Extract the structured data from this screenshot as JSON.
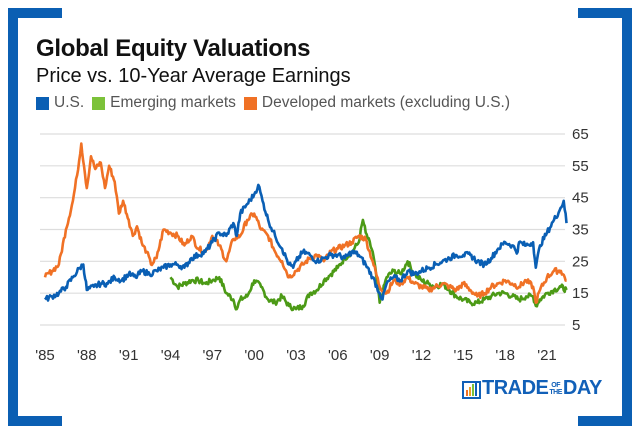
{
  "colors": {
    "frame": "#0b5fb3",
    "us": "#0a5fb4",
    "em": "#4c9a16",
    "dev": "#f07125",
    "grid": "#dddddd"
  },
  "legend": [
    {
      "label": "U.S.",
      "color": "#0a5fb4"
    },
    {
      "label": "Emerging markets",
      "color": "#7cc23a"
    },
    {
      "label": "Developed markets (excluding U.S.)",
      "color": "#f07125"
    }
  ],
  "logo": {
    "text_left": "TRADE",
    "text_of": "OF",
    "text_the": "THE",
    "text_right": "DAY"
  },
  "chart_data": {
    "type": "line",
    "title": "Global Equity Valuations",
    "subtitle": "Price vs. 10-Year Average Earnings",
    "xlabel": "",
    "ylabel": "",
    "xlim": [
      1984.6,
      2022.7
    ],
    "ylim": [
      5,
      65
    ],
    "yticks": [
      65,
      55,
      45,
      35,
      25,
      15,
      5
    ],
    "xticks": [
      {
        "year": 1985,
        "label": "'85"
      },
      {
        "year": 1988,
        "label": "'88"
      },
      {
        "year": 1991,
        "label": "'91"
      },
      {
        "year": 1994,
        "label": "'94"
      },
      {
        "year": 1997,
        "label": "'97"
      },
      {
        "year": 2000,
        "label": "'00"
      },
      {
        "year": 2003,
        "label": "'03"
      },
      {
        "year": 2006,
        "label": "'06"
      },
      {
        "year": 2009,
        "label": "'09"
      },
      {
        "year": 2012,
        "label": "'12"
      },
      {
        "year": 2015,
        "label": "'15"
      },
      {
        "year": 2018,
        "label": "'18"
      },
      {
        "year": 2021,
        "label": "'21"
      }
    ],
    "grid": true,
    "legend_position": "top-left",
    "series": [
      {
        "name": "U.S.",
        "key": "us",
        "x": [
          1985.0,
          1985.5,
          1986.0,
          1986.5,
          1987.0,
          1987.5,
          1987.75,
          1988.0,
          1988.5,
          1989.0,
          1989.5,
          1990.0,
          1990.5,
          1991.0,
          1991.5,
          1992.0,
          1992.5,
          1993.0,
          1993.5,
          1994.0,
          1994.5,
          1995.0,
          1995.5,
          1996.0,
          1996.5,
          1997.0,
          1997.5,
          1998.0,
          1998.5,
          1998.75,
          1999.0,
          1999.5,
          2000.0,
          2000.3,
          2000.6,
          2001.0,
          2001.5,
          2002.0,
          2002.5,
          2002.8,
          2003.0,
          2003.5,
          2004.0,
          2004.5,
          2005.0,
          2005.5,
          2006.0,
          2006.5,
          2007.0,
          2007.5,
          2008.0,
          2008.5,
          2009.0,
          2009.2,
          2009.5,
          2010.0,
          2010.5,
          2011.0,
          2011.5,
          2012.0,
          2012.5,
          2013.0,
          2013.5,
          2014.0,
          2014.5,
          2015.0,
          2015.5,
          2016.0,
          2016.5,
          2017.0,
          2017.5,
          2018.0,
          2018.5,
          2018.9,
          2019.0,
          2019.5,
          2020.0,
          2020.2,
          2020.5,
          2021.0,
          2021.5,
          2021.9,
          2022.2,
          2022.4
        ],
        "values": [
          13,
          14,
          15,
          17,
          20,
          23,
          24,
          16,
          17,
          18,
          18,
          20,
          19,
          21,
          20,
          22,
          21,
          22,
          23,
          24,
          24,
          23,
          26,
          27,
          28,
          31,
          34,
          33,
          37,
          33,
          40,
          43,
          46,
          49,
          44,
          38,
          33,
          29,
          24,
          23,
          25,
          28,
          27,
          25,
          26,
          27,
          27,
          26,
          28,
          27,
          24,
          20,
          15,
          13,
          18,
          20,
          19,
          22,
          21,
          22,
          23,
          24,
          25,
          26,
          27,
          27,
          27,
          25,
          24,
          26,
          29,
          31,
          30,
          28,
          31,
          30,
          31,
          23,
          30,
          34,
          38,
          41,
          44,
          37
        ]
      },
      {
        "name": "Emerging markets",
        "key": "em",
        "x": [
          1994.0,
          1994.5,
          1995.0,
          1995.5,
          1996.0,
          1996.5,
          1997.0,
          1997.5,
          1998.0,
          1998.5,
          1998.75,
          1999.0,
          1999.5,
          2000.0,
          2000.5,
          2001.0,
          2001.5,
          2002.0,
          2002.5,
          2003.0,
          2003.5,
          2004.0,
          2004.5,
          2005.0,
          2005.5,
          2006.0,
          2006.5,
          2007.0,
          2007.5,
          2007.8,
          2008.0,
          2008.5,
          2008.9,
          2009.0,
          2009.5,
          2010.0,
          2010.5,
          2011.0,
          2011.5,
          2012.0,
          2012.5,
          2013.0,
          2013.5,
          2014.0,
          2014.5,
          2015.0,
          2015.5,
          2016.0,
          2016.5,
          2017.0,
          2017.5,
          2018.0,
          2018.5,
          2019.0,
          2019.5,
          2020.0,
          2020.2,
          2020.5,
          2021.0,
          2021.5,
          2022.0,
          2022.4
        ],
        "values": [
          20,
          17,
          18,
          19,
          19,
          18,
          19,
          20,
          15,
          13,
          10,
          13,
          14,
          19,
          17,
          13,
          12,
          14,
          11,
          10,
          11,
          15,
          16,
          19,
          21,
          23,
          26,
          28,
          31,
          38,
          34,
          28,
          16,
          12,
          20,
          22,
          21,
          25,
          21,
          19,
          18,
          17,
          18,
          16,
          14,
          13,
          12,
          12,
          13,
          14,
          15,
          15,
          14,
          13,
          14,
          14,
          11,
          13,
          15,
          16,
          17,
          16
        ]
      },
      {
        "name": "Developed markets (excluding U.S.)",
        "key": "dev",
        "x": [
          1985.0,
          1985.5,
          1986.0,
          1986.5,
          1987.0,
          1987.3,
          1987.6,
          1987.8,
          1988.0,
          1988.3,
          1988.6,
          1989.0,
          1989.3,
          1989.6,
          1990.0,
          1990.3,
          1990.6,
          1991.0,
          1991.3,
          1991.6,
          1992.0,
          1992.3,
          1992.6,
          1993.0,
          1993.5,
          1994.0,
          1994.5,
          1995.0,
          1995.5,
          1996.0,
          1996.5,
          1997.0,
          1997.5,
          1998.0,
          1998.5,
          1999.0,
          1999.5,
          2000.0,
          2000.5,
          2001.0,
          2001.5,
          2002.0,
          2002.5,
          2003.0,
          2003.5,
          2004.0,
          2004.5,
          2005.0,
          2005.5,
          2006.0,
          2006.5,
          2007.0,
          2007.5,
          2008.0,
          2008.5,
          2009.0,
          2009.5,
          2010.0,
          2010.5,
          2011.0,
          2011.5,
          2012.0,
          2012.5,
          2013.0,
          2013.5,
          2014.0,
          2014.5,
          2015.0,
          2015.5,
          2016.0,
          2016.5,
          2017.0,
          2017.5,
          2018.0,
          2018.5,
          2019.0,
          2019.5,
          2020.0,
          2020.2,
          2020.5,
          2021.0,
          2021.5,
          2022.0,
          2022.4
        ],
        "values": [
          20,
          22,
          24,
          35,
          44,
          52,
          62,
          55,
          48,
          58,
          54,
          56,
          48,
          55,
          50,
          40,
          44,
          38,
          33,
          36,
          30,
          28,
          24,
          26,
          35,
          34,
          33,
          30,
          33,
          29,
          28,
          33,
          30,
          25,
          32,
          33,
          38,
          40,
          35,
          33,
          28,
          25,
          20,
          22,
          24,
          26,
          27,
          25,
          28,
          29,
          30,
          31,
          33,
          32,
          25,
          17,
          15,
          19,
          18,
          20,
          18,
          17,
          16,
          17,
          18,
          17,
          16,
          18,
          16,
          14,
          15,
          17,
          18,
          19,
          18,
          17,
          19,
          17,
          12,
          16,
          20,
          22,
          22,
          19
        ]
      }
    ]
  }
}
